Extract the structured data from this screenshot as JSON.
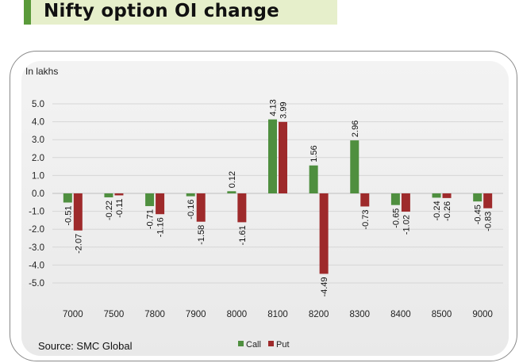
{
  "header": {
    "title": "Nifty option OI change"
  },
  "chart_data": {
    "type": "bar",
    "unit_label": "In lakhs",
    "categories": [
      "7000",
      "7500",
      "7800",
      "7900",
      "8000",
      "8100",
      "8200",
      "8300",
      "8400",
      "8500",
      "9000"
    ],
    "series": [
      {
        "name": "Call",
        "color": "#4f8f3f",
        "values": [
          -0.51,
          -0.22,
          -0.71,
          -0.16,
          0.12,
          4.13,
          1.56,
          2.96,
          -0.65,
          -0.24,
          -0.45
        ]
      },
      {
        "name": "Put",
        "color": "#9e2a2b",
        "values": [
          -2.07,
          -0.11,
          -1.16,
          -1.58,
          -1.61,
          3.99,
          -4.49,
          -0.73,
          -1.02,
          -0.26,
          -0.83
        ]
      }
    ],
    "yticks": [
      "5.0",
      "4.0",
      "3.0",
      "2.0",
      "1.0",
      "0.0",
      "-1.0",
      "-2.0",
      "-3.0",
      "-4.0",
      "-5.0"
    ],
    "ylim": [
      -5,
      5
    ],
    "grid": true,
    "legend": "bottom-center",
    "source": "Source: SMC Global"
  }
}
